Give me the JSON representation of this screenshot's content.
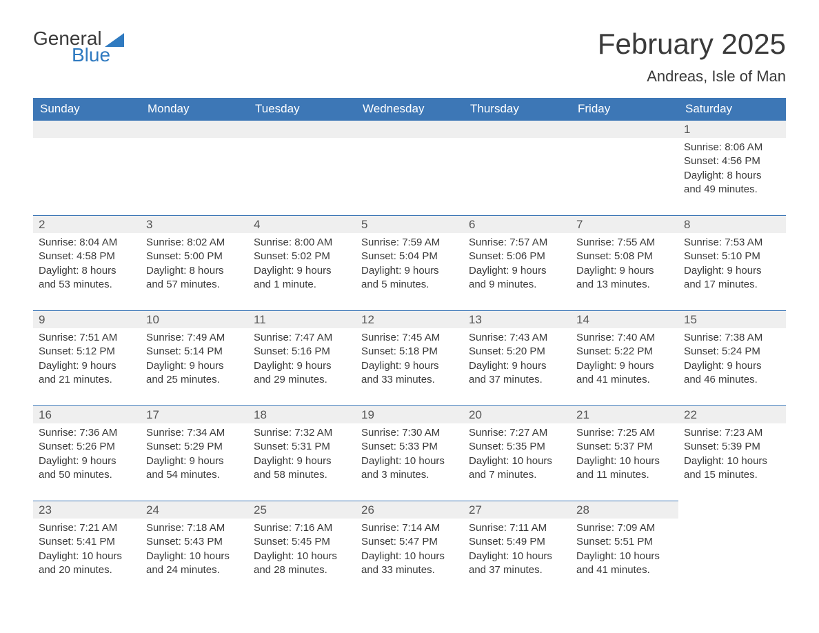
{
  "logo": {
    "text1": "General",
    "text2": "Blue",
    "sail_color": "#2f7ac0"
  },
  "title": "February 2025",
  "subtitle": "Andreas, Isle of Man",
  "header_bg": "#3d77b6",
  "header_fg": "#ffffff",
  "daynum_bg": "#efefef",
  "rule_color": "#3d77b6",
  "text_color": "#3a3a3a",
  "day_headers": [
    "Sunday",
    "Monday",
    "Tuesday",
    "Wednesday",
    "Thursday",
    "Friday",
    "Saturday"
  ],
  "weeks": [
    [
      {
        "blank": true
      },
      {
        "blank": true
      },
      {
        "blank": true
      },
      {
        "blank": true
      },
      {
        "blank": true
      },
      {
        "blank": true
      },
      {
        "n": "1",
        "sunrise": "Sunrise: 8:06 AM",
        "sunset": "Sunset: 4:56 PM",
        "dl1": "Daylight: 8 hours",
        "dl2": "and 49 minutes."
      }
    ],
    [
      {
        "n": "2",
        "sunrise": "Sunrise: 8:04 AM",
        "sunset": "Sunset: 4:58 PM",
        "dl1": "Daylight: 8 hours",
        "dl2": "and 53 minutes."
      },
      {
        "n": "3",
        "sunrise": "Sunrise: 8:02 AM",
        "sunset": "Sunset: 5:00 PM",
        "dl1": "Daylight: 8 hours",
        "dl2": "and 57 minutes."
      },
      {
        "n": "4",
        "sunrise": "Sunrise: 8:00 AM",
        "sunset": "Sunset: 5:02 PM",
        "dl1": "Daylight: 9 hours",
        "dl2": "and 1 minute."
      },
      {
        "n": "5",
        "sunrise": "Sunrise: 7:59 AM",
        "sunset": "Sunset: 5:04 PM",
        "dl1": "Daylight: 9 hours",
        "dl2": "and 5 minutes."
      },
      {
        "n": "6",
        "sunrise": "Sunrise: 7:57 AM",
        "sunset": "Sunset: 5:06 PM",
        "dl1": "Daylight: 9 hours",
        "dl2": "and 9 minutes."
      },
      {
        "n": "7",
        "sunrise": "Sunrise: 7:55 AM",
        "sunset": "Sunset: 5:08 PM",
        "dl1": "Daylight: 9 hours",
        "dl2": "and 13 minutes."
      },
      {
        "n": "8",
        "sunrise": "Sunrise: 7:53 AM",
        "sunset": "Sunset: 5:10 PM",
        "dl1": "Daylight: 9 hours",
        "dl2": "and 17 minutes."
      }
    ],
    [
      {
        "n": "9",
        "sunrise": "Sunrise: 7:51 AM",
        "sunset": "Sunset: 5:12 PM",
        "dl1": "Daylight: 9 hours",
        "dl2": "and 21 minutes."
      },
      {
        "n": "10",
        "sunrise": "Sunrise: 7:49 AM",
        "sunset": "Sunset: 5:14 PM",
        "dl1": "Daylight: 9 hours",
        "dl2": "and 25 minutes."
      },
      {
        "n": "11",
        "sunrise": "Sunrise: 7:47 AM",
        "sunset": "Sunset: 5:16 PM",
        "dl1": "Daylight: 9 hours",
        "dl2": "and 29 minutes."
      },
      {
        "n": "12",
        "sunrise": "Sunrise: 7:45 AM",
        "sunset": "Sunset: 5:18 PM",
        "dl1": "Daylight: 9 hours",
        "dl2": "and 33 minutes."
      },
      {
        "n": "13",
        "sunrise": "Sunrise: 7:43 AM",
        "sunset": "Sunset: 5:20 PM",
        "dl1": "Daylight: 9 hours",
        "dl2": "and 37 minutes."
      },
      {
        "n": "14",
        "sunrise": "Sunrise: 7:40 AM",
        "sunset": "Sunset: 5:22 PM",
        "dl1": "Daylight: 9 hours",
        "dl2": "and 41 minutes."
      },
      {
        "n": "15",
        "sunrise": "Sunrise: 7:38 AM",
        "sunset": "Sunset: 5:24 PM",
        "dl1": "Daylight: 9 hours",
        "dl2": "and 46 minutes."
      }
    ],
    [
      {
        "n": "16",
        "sunrise": "Sunrise: 7:36 AM",
        "sunset": "Sunset: 5:26 PM",
        "dl1": "Daylight: 9 hours",
        "dl2": "and 50 minutes."
      },
      {
        "n": "17",
        "sunrise": "Sunrise: 7:34 AM",
        "sunset": "Sunset: 5:29 PM",
        "dl1": "Daylight: 9 hours",
        "dl2": "and 54 minutes."
      },
      {
        "n": "18",
        "sunrise": "Sunrise: 7:32 AM",
        "sunset": "Sunset: 5:31 PM",
        "dl1": "Daylight: 9 hours",
        "dl2": "and 58 minutes."
      },
      {
        "n": "19",
        "sunrise": "Sunrise: 7:30 AM",
        "sunset": "Sunset: 5:33 PM",
        "dl1": "Daylight: 10 hours",
        "dl2": "and 3 minutes."
      },
      {
        "n": "20",
        "sunrise": "Sunrise: 7:27 AM",
        "sunset": "Sunset: 5:35 PM",
        "dl1": "Daylight: 10 hours",
        "dl2": "and 7 minutes."
      },
      {
        "n": "21",
        "sunrise": "Sunrise: 7:25 AM",
        "sunset": "Sunset: 5:37 PM",
        "dl1": "Daylight: 10 hours",
        "dl2": "and 11 minutes."
      },
      {
        "n": "22",
        "sunrise": "Sunrise: 7:23 AM",
        "sunset": "Sunset: 5:39 PM",
        "dl1": "Daylight: 10 hours",
        "dl2": "and 15 minutes."
      }
    ],
    [
      {
        "n": "23",
        "sunrise": "Sunrise: 7:21 AM",
        "sunset": "Sunset: 5:41 PM",
        "dl1": "Daylight: 10 hours",
        "dl2": "and 20 minutes."
      },
      {
        "n": "24",
        "sunrise": "Sunrise: 7:18 AM",
        "sunset": "Sunset: 5:43 PM",
        "dl1": "Daylight: 10 hours",
        "dl2": "and 24 minutes."
      },
      {
        "n": "25",
        "sunrise": "Sunrise: 7:16 AM",
        "sunset": "Sunset: 5:45 PM",
        "dl1": "Daylight: 10 hours",
        "dl2": "and 28 minutes."
      },
      {
        "n": "26",
        "sunrise": "Sunrise: 7:14 AM",
        "sunset": "Sunset: 5:47 PM",
        "dl1": "Daylight: 10 hours",
        "dl2": "and 33 minutes."
      },
      {
        "n": "27",
        "sunrise": "Sunrise: 7:11 AM",
        "sunset": "Sunset: 5:49 PM",
        "dl1": "Daylight: 10 hours",
        "dl2": "and 37 minutes."
      },
      {
        "n": "28",
        "sunrise": "Sunrise: 7:09 AM",
        "sunset": "Sunset: 5:51 PM",
        "dl1": "Daylight: 10 hours",
        "dl2": "and 41 minutes."
      },
      {
        "blank": true,
        "noRule": true
      }
    ]
  ]
}
